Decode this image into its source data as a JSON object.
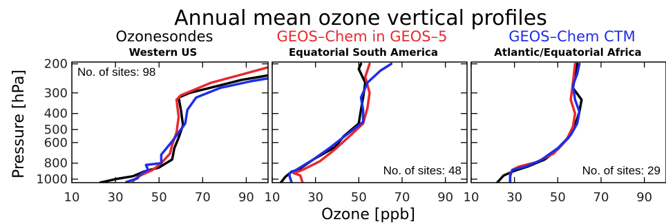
{
  "figure": {
    "title": "Annual mean ozone vertical profiles",
    "legend": [
      {
        "label": "Ozonesondes",
        "color": "#000000"
      },
      {
        "label": "GEOS–Chem in GEOS–5",
        "color": "#e8292e"
      },
      {
        "label": "GEOS–Chem CTM",
        "color": "#1f2de6"
      }
    ],
    "xlabel": "Ozone [ppb]",
    "ylabel": "Pressure [hPa]"
  },
  "chart_data": [
    {
      "type": "line",
      "title": "Western US",
      "annotation": "No. of sites: 98",
      "annotation_pos": "top-left",
      "xlabel": "Ozone [ppb]",
      "ylabel": "Pressure [hPa]",
      "xlim": [
        10,
        100
      ],
      "ylim": [
        1050,
        195
      ],
      "yscale": "log",
      "xticks": [
        10,
        30,
        50,
        70,
        90
      ],
      "yticks": [
        200,
        300,
        400,
        500,
        600,
        800,
        1000
      ],
      "series": [
        {
          "name": "Ozonesondes",
          "color": "#000000",
          "points": [
            [
              23,
              1050
            ],
            [
              30,
              1000
            ],
            [
              38,
              960
            ],
            [
              43,
              900
            ],
            [
              50,
              850
            ],
            [
              56,
              760
            ],
            [
              57,
              650
            ],
            [
              59,
              560
            ],
            [
              61,
              470
            ],
            [
              60,
              380
            ],
            [
              59,
              320
            ],
            [
              64,
              300
            ],
            [
              78,
              270
            ],
            [
              88,
              250
            ],
            [
              100,
              235
            ]
          ]
        },
        {
          "name": "GEOS–Chem in GEOS–5",
          "color": "#e8292e",
          "points": [
            [
              38,
              1030
            ],
            [
              40,
              970
            ],
            [
              43,
              930
            ],
            [
              47,
              880
            ],
            [
              51,
              800
            ],
            [
              55,
              700
            ],
            [
              56,
              620
            ],
            [
              58,
              520
            ],
            [
              59,
              420
            ],
            [
              58,
              330
            ],
            [
              60,
              310
            ],
            [
              74,
              260
            ],
            [
              89,
              230
            ],
            [
              100,
              210
            ]
          ]
        },
        {
          "name": "GEOS–Chem CTM",
          "color": "#1f2de6",
          "points": [
            [
              35,
              1040
            ],
            [
              40,
              990
            ],
            [
              42,
              920
            ],
            [
              45,
              880
            ],
            [
              44,
              820
            ],
            [
              51,
              800
            ],
            [
              51,
              710
            ],
            [
              56,
              590
            ],
            [
              62,
              460
            ],
            [
              63,
              380
            ],
            [
              67,
              320
            ],
            [
              78,
              280
            ],
            [
              92,
              255
            ],
            [
              100,
              245
            ]
          ]
        }
      ]
    },
    {
      "type": "line",
      "title": "Equatorial South America",
      "annotation": "No. of sites: 48",
      "annotation_pos": "bottom-right",
      "xlabel": "Ozone [ppb]",
      "ylabel": "Pressure [hPa]",
      "xlim": [
        10,
        100
      ],
      "ylim": [
        1050,
        195
      ],
      "yscale": "log",
      "xticks": [
        10,
        30,
        50,
        70,
        90
      ],
      "yticks": [
        200,
        300,
        400,
        500,
        600,
        800,
        1000
      ],
      "series": [
        {
          "name": "Ozonesondes",
          "color": "#000000",
          "points": [
            [
              14,
              1050
            ],
            [
              16,
              970
            ],
            [
              19,
              900
            ],
            [
              22,
              880
            ],
            [
              29,
              760
            ],
            [
              39,
              640
            ],
            [
              43,
              550
            ],
            [
              50,
              460
            ],
            [
              51,
              380
            ],
            [
              52,
              320
            ],
            [
              53,
              260
            ],
            [
              50,
              215
            ],
            [
              51,
              200
            ]
          ]
        },
        {
          "name": "GEOS–Chem in GEOS–5",
          "color": "#e8292e",
          "points": [
            [
              24,
              1050
            ],
            [
              23,
              950
            ],
            [
              20,
              920
            ],
            [
              24,
              880
            ],
            [
              32,
              780
            ],
            [
              39,
              660
            ],
            [
              45,
              560
            ],
            [
              52,
              460
            ],
            [
              54,
              370
            ],
            [
              55,
              300
            ],
            [
              53,
              240
            ],
            [
              55,
              200
            ]
          ]
        },
        {
          "name": "GEOS–Chem CTM",
          "color": "#1f2de6",
          "points": [
            [
              19,
              1050
            ],
            [
              18,
              960
            ],
            [
              18,
              920
            ],
            [
              21,
              880
            ],
            [
              29,
              760
            ],
            [
              37,
              640
            ],
            [
              45,
              530
            ],
            [
              52,
              450
            ],
            [
              52,
              380
            ],
            [
              51,
              320
            ],
            [
              54,
              260
            ],
            [
              60,
              220
            ],
            [
              65,
              200
            ]
          ]
        }
      ]
    },
    {
      "type": "line",
      "title": "Atlantic/Equatorial Africa",
      "annotation": "No. of sites: 29",
      "annotation_pos": "bottom-right",
      "xlabel": "Ozone [ppb]",
      "ylabel": "Pressure [hPa]",
      "xlim": [
        10,
        100
      ],
      "ylim": [
        1050,
        195
      ],
      "yscale": "log",
      "xticks": [
        10,
        30,
        50,
        70,
        90
      ],
      "yticks": [
        200,
        300,
        400,
        500,
        600,
        800,
        1000
      ],
      "series": [
        {
          "name": "Ozonesondes",
          "color": "#000000",
          "points": [
            [
              22,
              1050
            ],
            [
              25,
              950
            ],
            [
              30,
              890
            ],
            [
              36,
              840
            ],
            [
              44,
              760
            ],
            [
              50,
              660
            ],
            [
              55,
              560
            ],
            [
              58,
              470
            ],
            [
              60,
              390
            ],
            [
              61,
              330
            ],
            [
              57,
              280
            ],
            [
              58,
              240
            ],
            [
              59,
              200
            ]
          ]
        },
        {
          "name": "GEOS–Chem in GEOS–5",
          "color": "#e8292e",
          "points": [
            [
              28,
              1050
            ],
            [
              28,
              930
            ],
            [
              29,
              880
            ],
            [
              32,
              840
            ],
            [
              40,
              790
            ],
            [
              48,
              700
            ],
            [
              54,
              580
            ],
            [
              57,
              480
            ],
            [
              58,
              400
            ],
            [
              56,
              330
            ],
            [
              57,
              260
            ],
            [
              58,
              200
            ]
          ]
        },
        {
          "name": "GEOS–Chem CTM",
          "color": "#1f2de6",
          "points": [
            [
              28,
              1050
            ],
            [
              28,
              960
            ],
            [
              29,
              880
            ],
            [
              35,
              840
            ],
            [
              42,
              770
            ],
            [
              50,
              650
            ],
            [
              56,
              540
            ],
            [
              59,
              460
            ],
            [
              60,
              390
            ],
            [
              58,
              330
            ],
            [
              57,
              270
            ],
            [
              59,
              230
            ],
            [
              60,
              200
            ]
          ]
        }
      ]
    }
  ]
}
